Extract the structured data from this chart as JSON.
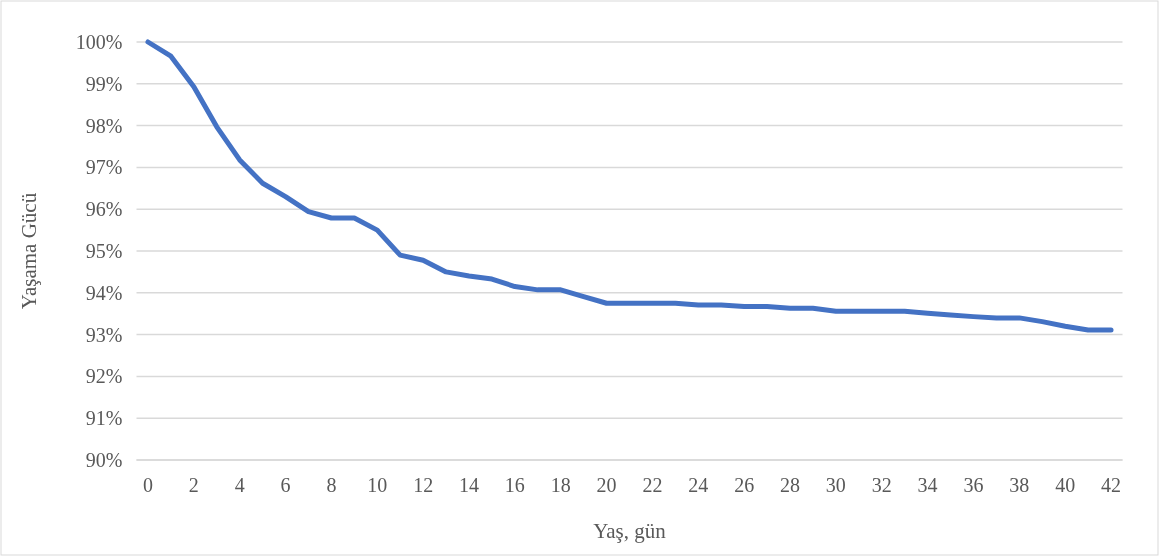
{
  "chart_data": {
    "type": "line",
    "xlabel": "Yaş, gün",
    "ylabel": "Yaşama Gücü",
    "x": [
      0,
      1,
      2,
      3,
      4,
      5,
      6,
      7,
      8,
      9,
      10,
      11,
      12,
      13,
      14,
      15,
      16,
      17,
      18,
      19,
      20,
      21,
      22,
      23,
      24,
      25,
      26,
      27,
      28,
      29,
      30,
      31,
      32,
      33,
      34,
      35,
      36,
      37,
      38,
      39,
      40,
      41,
      42
    ],
    "series": [
      {
        "color": "#4472c4",
        "values": [
          100.0,
          99.66,
          98.93,
          97.97,
          97.18,
          96.62,
          96.3,
          95.94,
          95.79,
          95.79,
          95.5,
          94.9,
          94.78,
          94.5,
          94.4,
          94.33,
          94.15,
          94.07,
          94.07,
          93.91,
          93.75,
          93.75,
          93.75,
          93.75,
          93.71,
          93.71,
          93.67,
          93.67,
          93.63,
          93.63,
          93.56,
          93.56,
          93.56,
          93.56,
          93.51,
          93.47,
          93.43,
          93.4,
          93.4,
          93.31,
          93.2,
          93.11,
          93.11
        ]
      }
    ],
    "xlim": [
      -0.5,
      42.5
    ],
    "xticks": [
      0,
      2,
      4,
      6,
      8,
      10,
      12,
      14,
      16,
      18,
      20,
      22,
      24,
      26,
      28,
      30,
      32,
      34,
      36,
      38,
      40,
      42
    ],
    "ylim": [
      90,
      100
    ],
    "yticks": [
      {
        "value": 90,
        "label": "90%"
      },
      {
        "value": 91,
        "label": "91%"
      },
      {
        "value": 92,
        "label": "92%"
      },
      {
        "value": 93,
        "label": "93%"
      },
      {
        "value": 94,
        "label": "94%"
      },
      {
        "value": 95,
        "label": "95%"
      },
      {
        "value": 96,
        "label": "96%"
      },
      {
        "value": 97,
        "label": "97%"
      },
      {
        "value": 98,
        "label": "98%"
      },
      {
        "value": 99,
        "label": "99%"
      },
      {
        "value": 100,
        "label": "100%"
      }
    ],
    "grid": "y",
    "marker": "none",
    "line_style": "solid"
  }
}
